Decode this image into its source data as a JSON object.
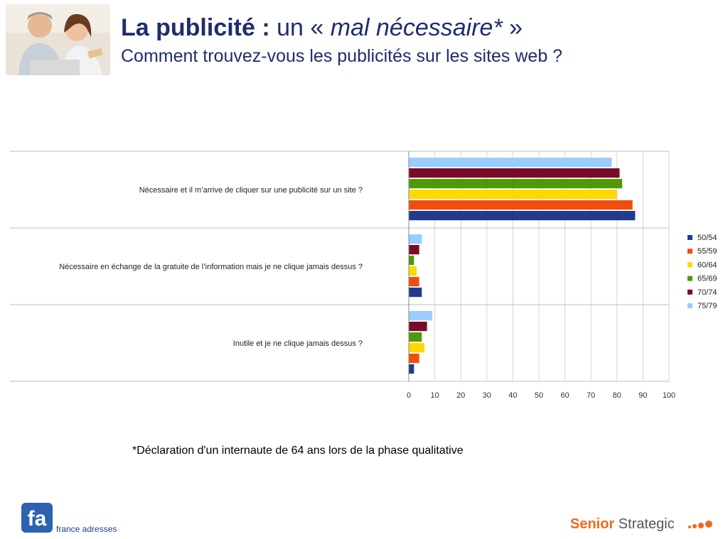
{
  "header": {
    "title_bold": "La publicité :",
    "title_un": " un « ",
    "title_italic": "mal nécessaire*",
    "title_end": " »",
    "subtitle": "Comment trouvez-vous les publicités sur les sites web  ?"
  },
  "chart_data": {
    "type": "bar",
    "orientation": "horizontal",
    "categories": [
      "Nécessaire et il m’arrive de cliquer sur une publicité sur un site  ?",
      "Nécessaire en échange de la gratuite de l’information mais je ne clique jamais dessus  ?",
      "Inutile  et je ne clique jamais dessus ?"
    ],
    "series": [
      {
        "name": "50/54",
        "color": "#1f3c8f",
        "values": [
          87,
          5,
          2
        ]
      },
      {
        "name": "55/59",
        "color": "#f04e0e",
        "values": [
          86,
          4,
          4
        ]
      },
      {
        "name": "60/64",
        "color": "#ffd800",
        "values": [
          80,
          3,
          6
        ]
      },
      {
        "name": "65/69",
        "color": "#4e9a06",
        "values": [
          82,
          2,
          5
        ]
      },
      {
        "name": "70/74",
        "color": "#7a0b2a",
        "values": [
          81,
          4,
          7
        ]
      },
      {
        "name": "75/79",
        "color": "#99ccff",
        "values": [
          78,
          5,
          9
        ]
      }
    ],
    "xlim": [
      0,
      100
    ],
    "xticks": [
      "0",
      "10",
      "20",
      "30",
      "40",
      "50",
      "60",
      "70",
      "80",
      "90",
      "100"
    ],
    "grid": true,
    "legend": "right"
  },
  "footnote": "*Déclaration d'un internaute de 64 ans lors de la phase qualitative",
  "footer": {
    "logo_text": "france adresses",
    "brand_bold": "Senior",
    "brand_rest": " Strategic"
  }
}
